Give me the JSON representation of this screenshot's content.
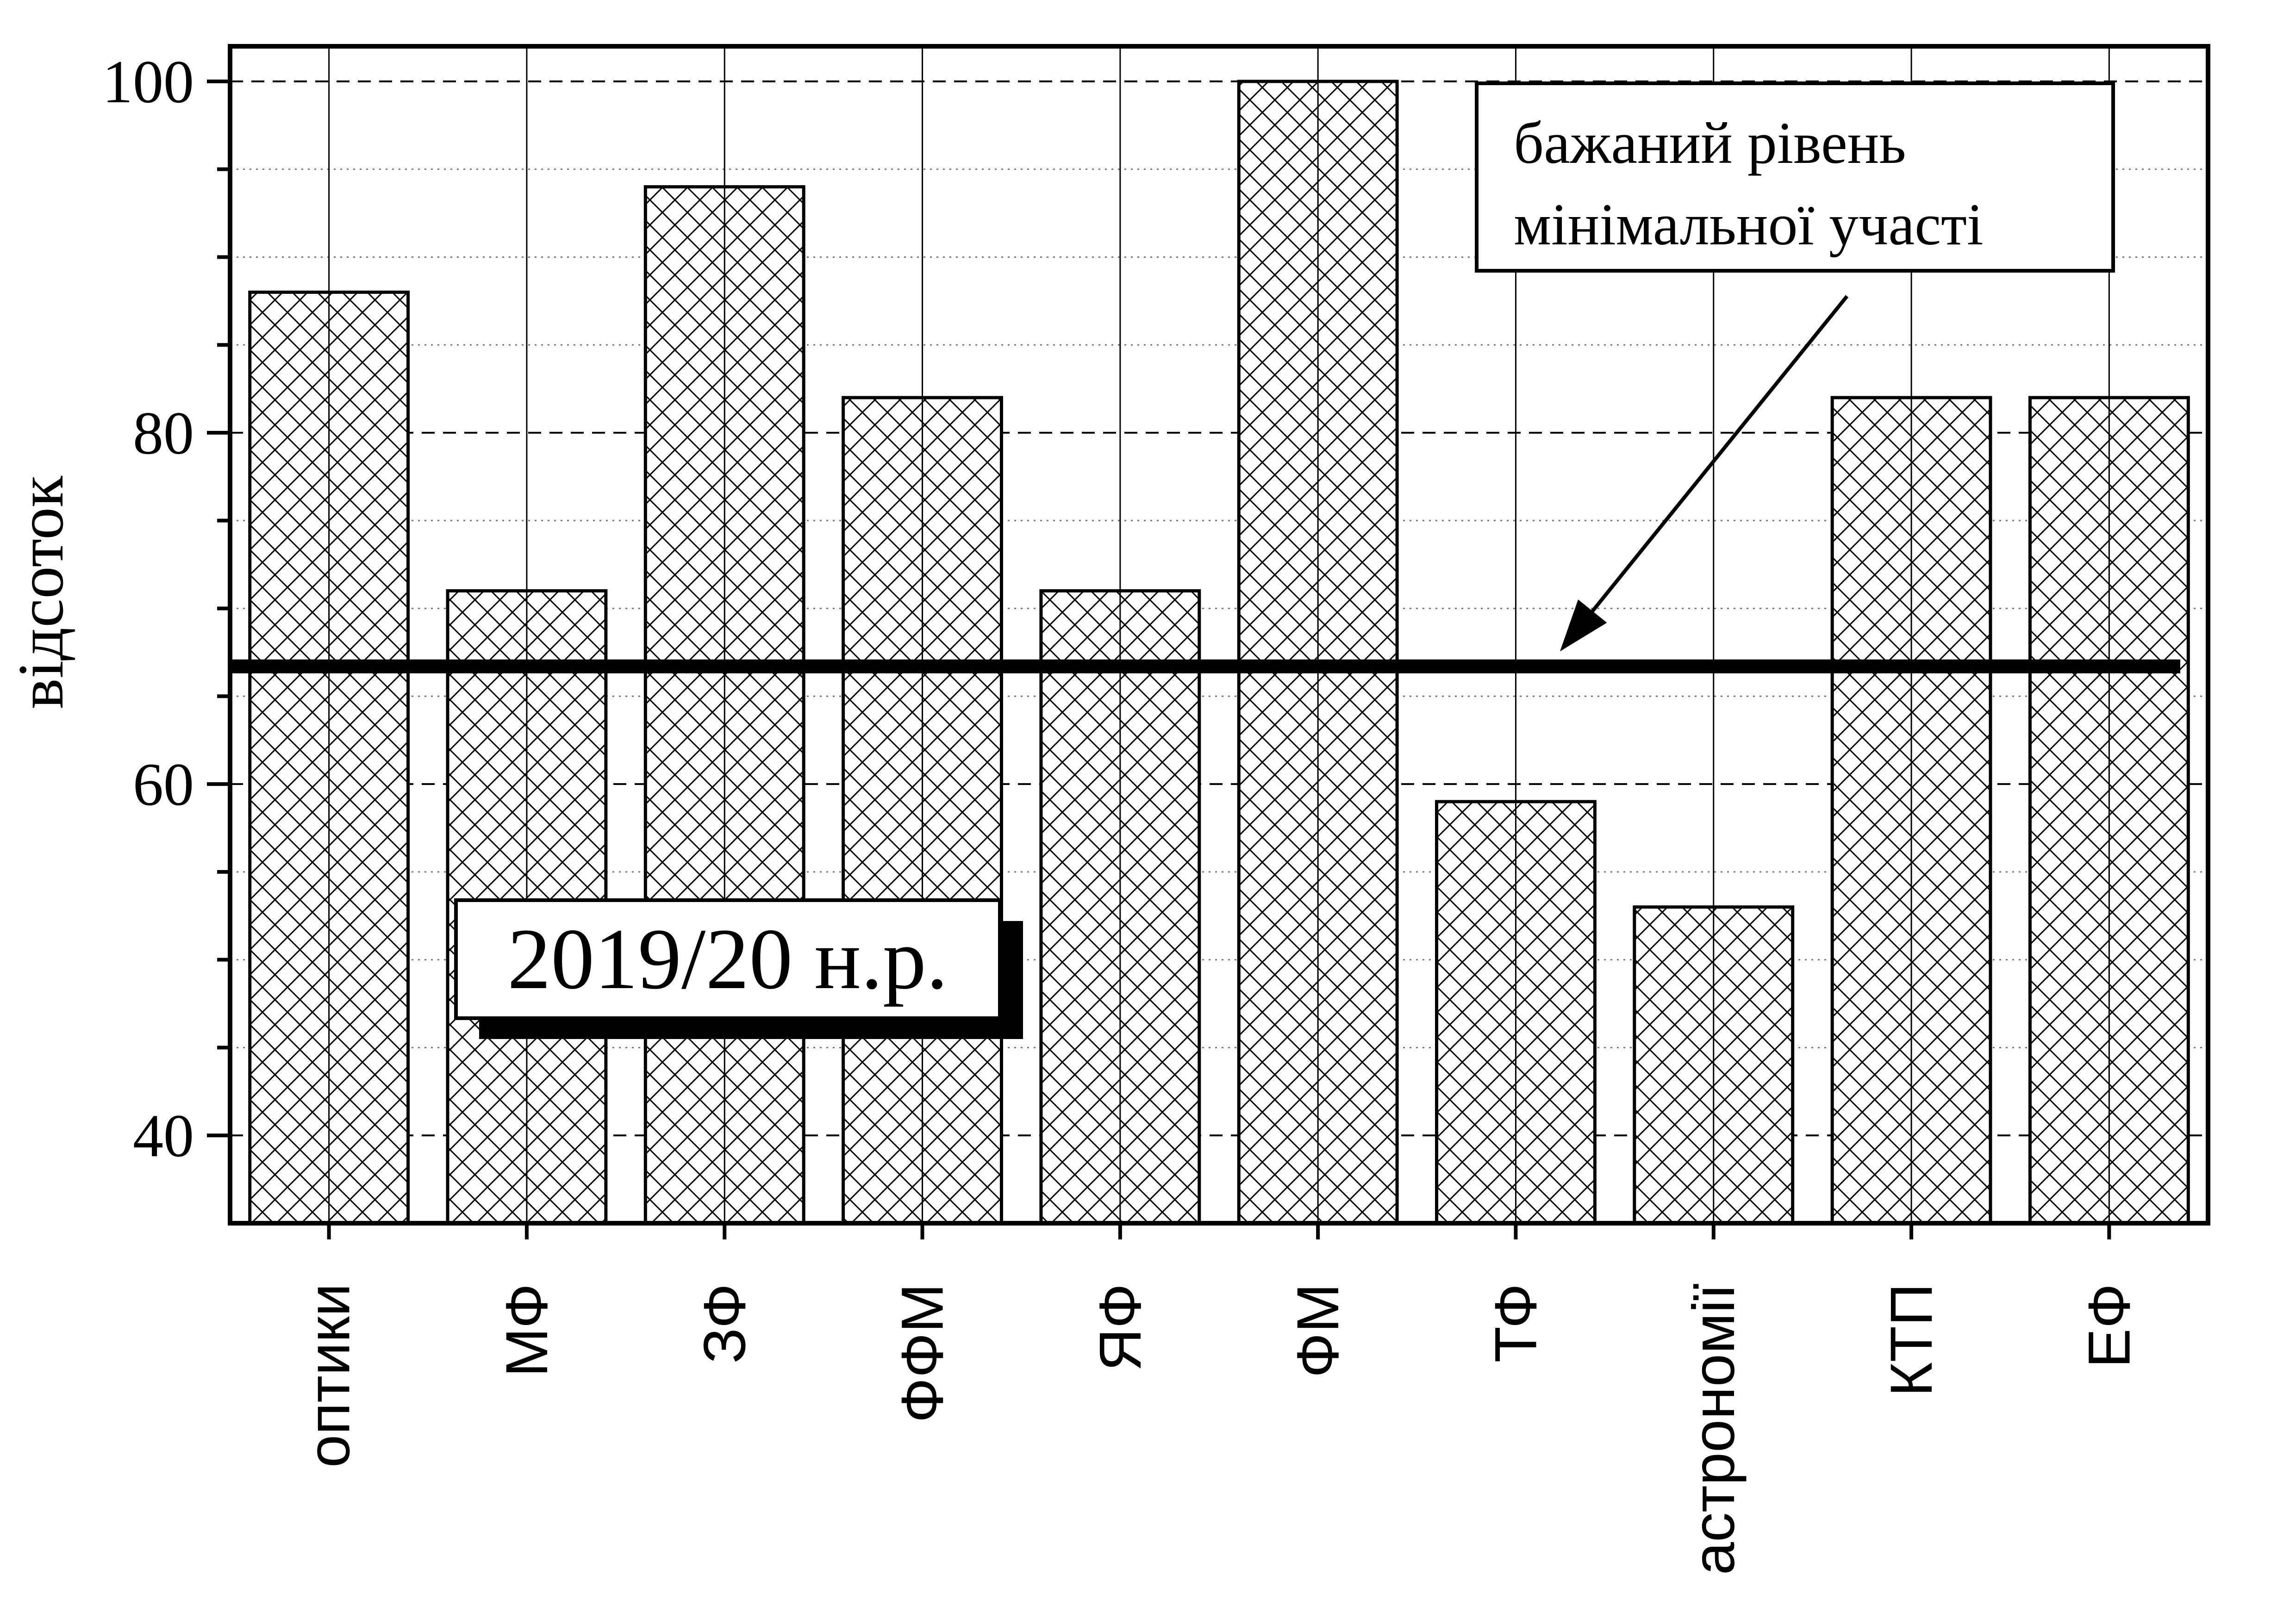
{
  "chart_data": {
    "type": "bar",
    "categories": [
      "оптики",
      "МФ",
      "ЗФ",
      "ФФМ",
      "ЯФ",
      "ФМ",
      "ТФ",
      "астрономії",
      "КТП",
      "ЕФ"
    ],
    "values": [
      88,
      71,
      94,
      82,
      71,
      100,
      59,
      53,
      82,
      82
    ],
    "ylabel": "відсоток",
    "xlabel": "",
    "ylim": [
      35,
      102
    ],
    "yticks": [
      40,
      60,
      80,
      100
    ],
    "reference_line": {
      "value": 66.7
    },
    "annotation": {
      "line1": "бажаний рівень",
      "line2": "мінімальної участі"
    },
    "period_label": "2019/20 н.р.",
    "bar_pattern": "crosshatch",
    "grid": true,
    "colors": {
      "bar_fill": "#ffffff",
      "bar_edge": "#000000",
      "reference_line": "#000000"
    }
  }
}
